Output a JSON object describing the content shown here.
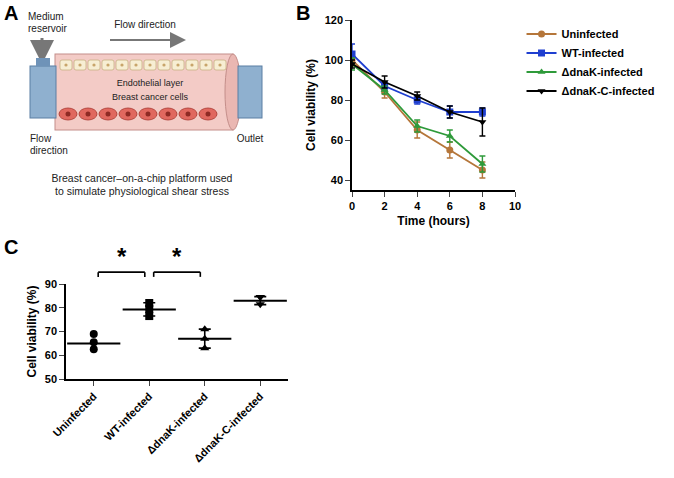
{
  "diagram": {
    "panel_label": "A",
    "labels": {
      "reservoir": "Medium reservoir",
      "flow_top": "Flow direction",
      "flow_inlet": "Flow direction",
      "endothelial": "Endothelial layer",
      "cells": "Breast cancer cells",
      "outlet": "Outlet"
    },
    "caption": "Breast cancer–on-a-chip platform used to simulate physiological shear stress"
  },
  "chart_data": [
    {
      "panel_label": "B",
      "type": "line",
      "x_label": "Time (hours)",
      "y_label": "Cell viability (%)",
      "x": [
        0,
        2,
        4,
        6,
        8
      ],
      "xlim": [
        0,
        10
      ],
      "xticks": [
        0,
        2,
        4,
        6,
        8,
        10
      ],
      "ylim": [
        35,
        120
      ],
      "yticks": [
        40,
        60,
        80,
        100,
        120
      ],
      "grid": false,
      "legend": "right",
      "series": [
        {
          "name": "Uninfected",
          "color": "#b5763a",
          "marker": "circle",
          "values": [
            100,
            84,
            65,
            55,
            45
          ],
          "errors": [
            3,
            3,
            4,
            4,
            4
          ]
        },
        {
          "name": "WT-infected",
          "color": "#1f3fd0",
          "marker": "square",
          "values": [
            103,
            87,
            80,
            74,
            74
          ],
          "errors": [
            5,
            2,
            2,
            3,
            2
          ]
        },
        {
          "name": "ΔdnaK-infected",
          "color": "#2e9a3a",
          "marker": "triangle-up",
          "values": [
            98,
            85,
            67,
            62,
            48
          ],
          "errors": [
            3,
            2,
            3,
            3,
            4
          ]
        },
        {
          "name": "ΔdnaK-C-infected",
          "color": "#000000",
          "marker": "triangle-down",
          "values": [
            98,
            89,
            82,
            74,
            69
          ],
          "errors": [
            2,
            3,
            2,
            3,
            7
          ]
        }
      ]
    },
    {
      "panel_label": "C",
      "type": "scatter",
      "y_label": "Cell viability (%)",
      "categories": [
        "Uninfected",
        "WT-infected",
        "ΔdnaK-infected",
        "ΔdnaK-C-infected"
      ],
      "values": [
        [
          69,
          65.5,
          62.5
        ],
        [
          82,
          79.5,
          76.5
        ],
        [
          71,
          67,
          63
        ],
        [
          84.5,
          84.5,
          81.5
        ]
      ],
      "markers": [
        "circle",
        "square",
        "triangle-up",
        "triangle-down"
      ],
      "means": [
        65,
        79.3,
        67,
        83
      ],
      "errors": [
        null,
        2.8,
        4,
        1.7
      ],
      "color": "#000000",
      "ylim": [
        50,
        90
      ],
      "yticks": [
        50,
        60,
        70,
        80,
        90
      ],
      "grid": false,
      "annotations": [
        {
          "text": "*",
          "from": "Uninfected",
          "to": "WT-infected",
          "y": 95
        },
        {
          "text": "*",
          "from": "WT-infected",
          "to": "ΔdnaK-infected",
          "y": 95
        }
      ]
    }
  ]
}
